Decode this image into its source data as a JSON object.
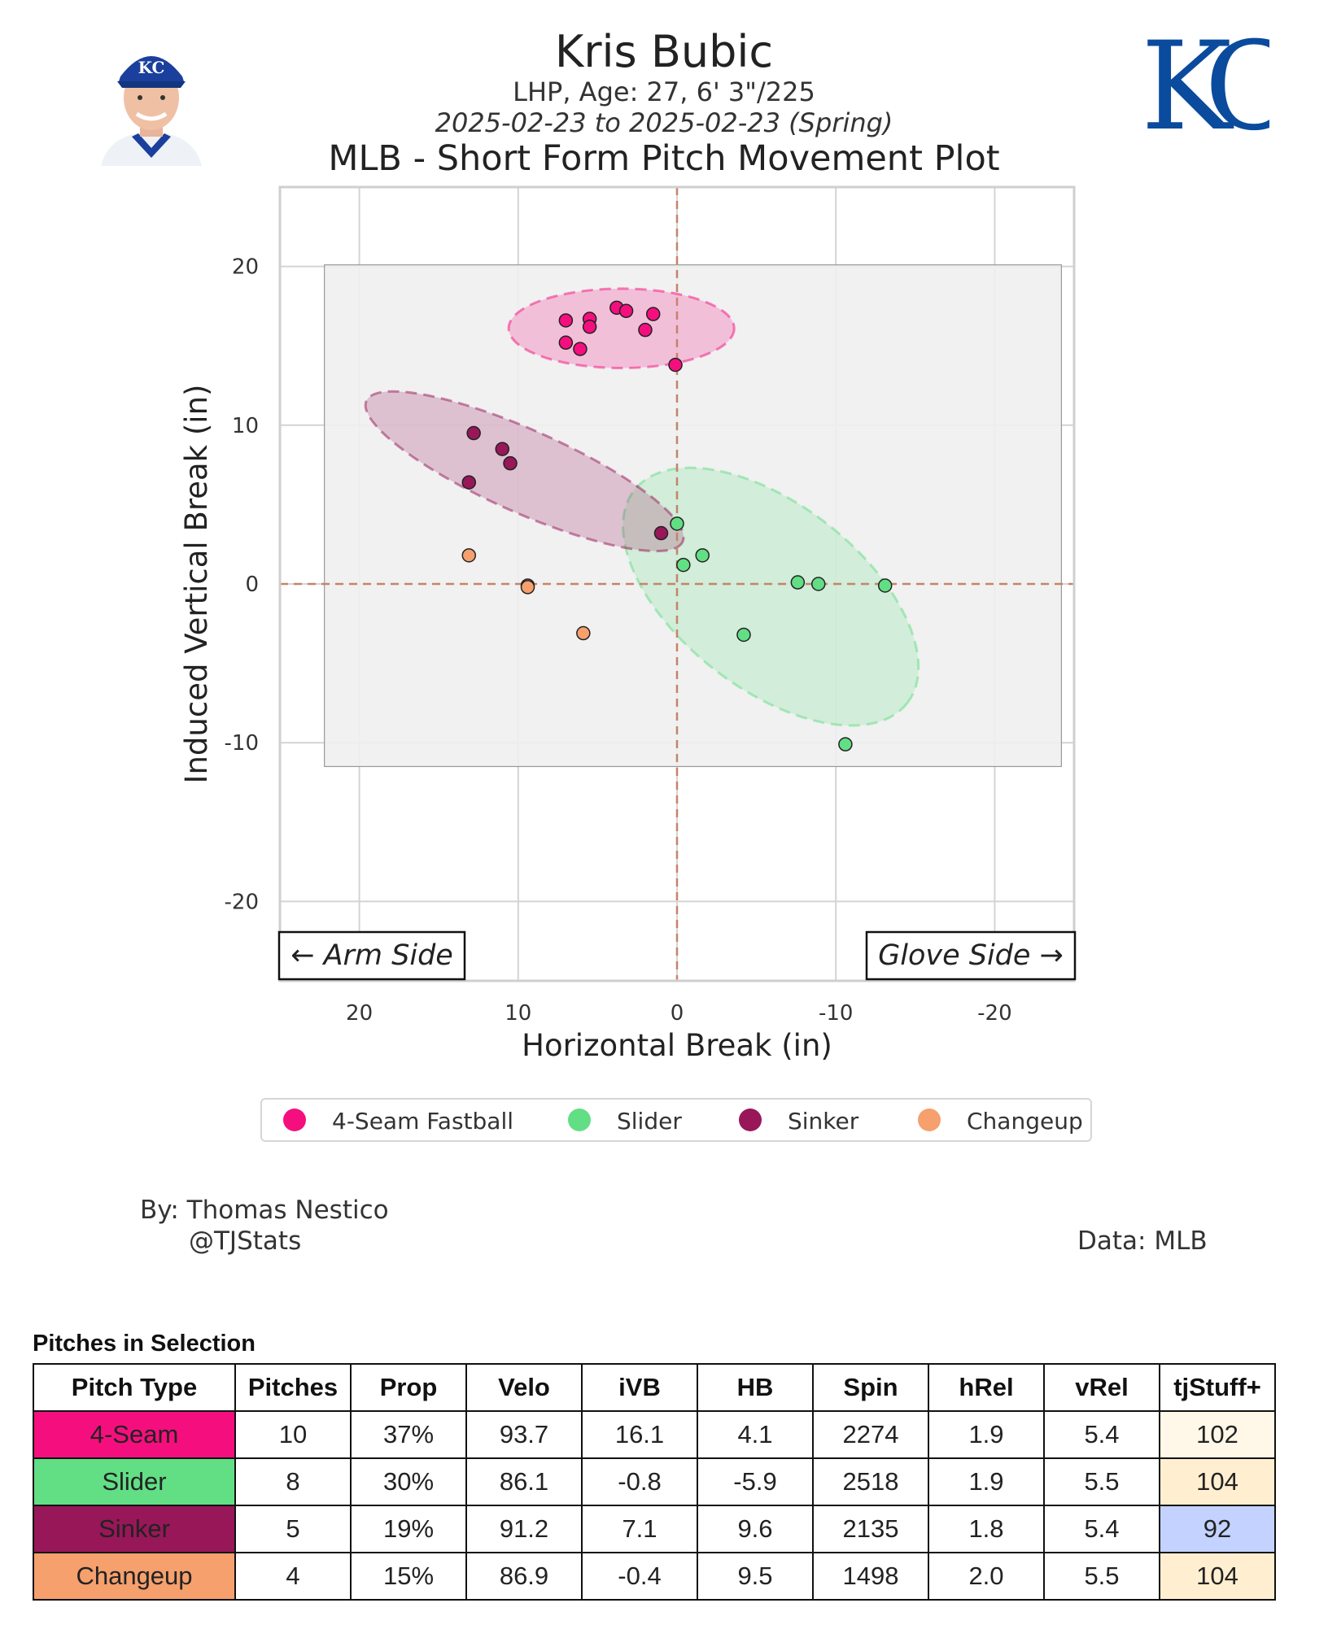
{
  "header": {
    "player_name": "Kris Bubic",
    "player_info": "LHP, Age: 27, 6' 3\"/225",
    "date_range": "2025-02-23 to 2025-02-23 (Spring)",
    "plot_title": "MLB - Short Form Pitch Movement Plot",
    "logo_text": "KC"
  },
  "colors": {
    "four_seam": "#f50f7e",
    "slider": "#62de85",
    "sinker": "#981759",
    "changeup": "#f5a06d",
    "stuff_102": "#fff8e8",
    "stuff_104": "#ffefd0",
    "stuff_92": "#c3d2ff"
  },
  "chart_data": {
    "type": "scatter",
    "title": "MLB - Short Form Pitch Movement Plot",
    "xlabel": "Horizontal Break (in)",
    "ylabel": "Induced Vertical Break (in)",
    "xlim": [
      25,
      -25
    ],
    "ylim": [
      -25,
      25
    ],
    "xticks": [
      20,
      10,
      0,
      -10,
      -20
    ],
    "yticks": [
      20,
      10,
      0,
      -10,
      -20
    ],
    "grid": true,
    "legend_position": "bottom",
    "annotations": {
      "arm_side": "← Arm Side",
      "glove_side": "Glove Side →"
    },
    "series": [
      {
        "name": "4-Seam Fastball",
        "color": "#f50f7e",
        "points": [
          [
            7.0,
            16.6
          ],
          [
            5.5,
            16.7
          ],
          [
            5.5,
            16.2
          ],
          [
            3.8,
            17.4
          ],
          [
            3.2,
            17.2
          ],
          [
            1.5,
            17.0
          ],
          [
            2.0,
            16.0
          ],
          [
            7.0,
            15.2
          ],
          [
            6.1,
            14.8
          ],
          [
            0.1,
            13.8
          ]
        ],
        "ellipse": {
          "cx": 3.5,
          "cy": 16.1,
          "rx": 7.1,
          "ry": 2.5,
          "angle": 0
        }
      },
      {
        "name": "Slider",
        "color": "#62de85",
        "points": [
          [
            0.0,
            3.8
          ],
          [
            -0.4,
            1.2
          ],
          [
            -1.6,
            1.8
          ],
          [
            -7.6,
            0.1
          ],
          [
            -8.9,
            0.0
          ],
          [
            -13.1,
            -0.1
          ],
          [
            -4.2,
            -3.2
          ],
          [
            -10.6,
            -10.1
          ]
        ],
        "ellipse": {
          "cx": -5.9,
          "cy": -0.8,
          "rx": 10.9,
          "ry": 5.8,
          "angle": 38
        }
      },
      {
        "name": "Sinker",
        "color": "#981759",
        "points": [
          [
            12.8,
            9.5
          ],
          [
            11.0,
            8.5
          ],
          [
            10.5,
            7.6
          ],
          [
            13.1,
            6.4
          ],
          [
            1.0,
            3.2
          ]
        ],
        "ellipse": {
          "cx": 9.6,
          "cy": 7.1,
          "rx": 10.9,
          "ry": 2.6,
          "angle": 24
        }
      },
      {
        "name": "Changeup",
        "color": "#f5a06d",
        "points": [
          [
            13.1,
            1.8
          ],
          [
            9.4,
            -0.1
          ],
          [
            9.4,
            -0.2
          ],
          [
            5.9,
            -3.1
          ]
        ],
        "ellipse": null
      }
    ],
    "zone_box": {
      "x0": 22.2,
      "x1": -24.2,
      "y0": -11.5,
      "y1": 20.1
    }
  },
  "legend": {
    "items": [
      {
        "label": "4-Seam Fastball",
        "color": "#f50f7e"
      },
      {
        "label": "Slider",
        "color": "#62de85"
      },
      {
        "label": "Sinker",
        "color": "#981759"
      },
      {
        "label": "Changeup",
        "color": "#f5a06d"
      }
    ]
  },
  "credits": {
    "by": "By: Thomas Nestico",
    "handle": "@TJStats",
    "data": "Data: MLB"
  },
  "table": {
    "title": "Pitches in Selection",
    "columns": [
      "Pitch Type",
      "Pitches",
      "Prop",
      "Velo",
      "iVB",
      "HB",
      "Spin",
      "hRel",
      "vRel",
      "tjStuff+"
    ],
    "rows": [
      {
        "type": "4-Seam",
        "color": "#f50f7e",
        "pitches": "10",
        "prop": "37%",
        "velo": "93.7",
        "ivb": "16.1",
        "hb": "4.1",
        "spin": "2274",
        "hrel": "1.9",
        "vrel": "5.4",
        "stuff": "102",
        "stuff_color": "#fff8e8"
      },
      {
        "type": "Slider",
        "color": "#62de85",
        "pitches": "8",
        "prop": "30%",
        "velo": "86.1",
        "ivb": "-0.8",
        "hb": "-5.9",
        "spin": "2518",
        "hrel": "1.9",
        "vrel": "5.5",
        "stuff": "104",
        "stuff_color": "#ffefd0"
      },
      {
        "type": "Sinker",
        "color": "#981759",
        "pitches": "5",
        "prop": "19%",
        "velo": "91.2",
        "ivb": "7.1",
        "hb": "9.6",
        "spin": "2135",
        "hrel": "1.8",
        "vrel": "5.4",
        "stuff": "92",
        "stuff_color": "#c3d2ff"
      },
      {
        "type": "Changeup",
        "color": "#f5a06d",
        "pitches": "4",
        "prop": "15%",
        "velo": "86.9",
        "ivb": "-0.4",
        "hb": "9.5",
        "spin": "1498",
        "hrel": "2.0",
        "vrel": "5.5",
        "stuff": "104",
        "stuff_color": "#ffefd0"
      }
    ]
  }
}
